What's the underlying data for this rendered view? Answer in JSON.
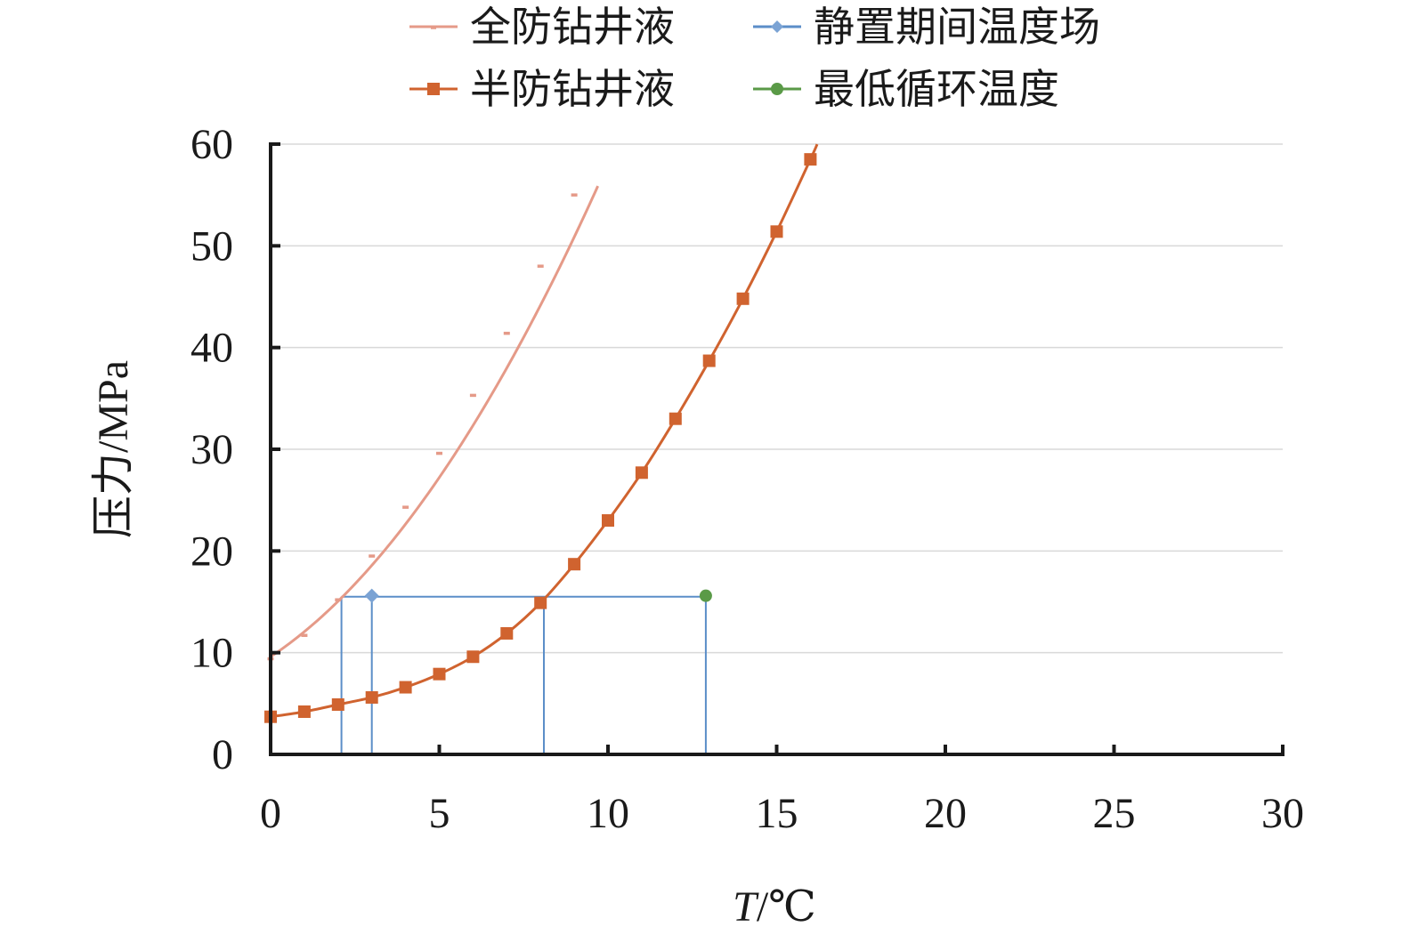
{
  "chart_data": {
    "type": "line",
    "xlabel_italic": "T",
    "xlabel_unit": "/℃",
    "ylabel": "压力/MPa",
    "xlim": [
      0,
      30
    ],
    "ylim": [
      0,
      60
    ],
    "x_ticks": [
      "0",
      "5",
      "10",
      "15",
      "20",
      "25",
      "30"
    ],
    "y_ticks": [
      "0",
      "10",
      "20",
      "30",
      "40",
      "50",
      "60"
    ],
    "grid": "horizontal",
    "legend_position": "top",
    "series": [
      {
        "name": "全防钻井液",
        "color": "#e59a88",
        "marker": "dash",
        "x": [
          0,
          1,
          2,
          3,
          4,
          5,
          6,
          7,
          8,
          9
        ],
        "y": [
          9.4,
          11.7,
          15.2,
          19.5,
          24.3,
          29.6,
          35.3,
          41.4,
          48.0,
          55.0
        ],
        "curve": {
          "x_end": 9.7,
          "coef": [
            9.6,
            2.2,
            0.265
          ]
        }
      },
      {
        "name": "半防钻井液",
        "color": "#d0632f",
        "marker": "square",
        "x": [
          0,
          1,
          2,
          3,
          4,
          5,
          6,
          7,
          8,
          9,
          10,
          11,
          12,
          13,
          14,
          15,
          16
        ],
        "y": [
          3.7,
          4.2,
          4.9,
          5.6,
          6.6,
          7.9,
          9.6,
          11.9,
          14.9,
          18.7,
          23.0,
          27.7,
          33.0,
          38.7,
          44.8,
          51.4,
          58.5
        ],
        "curve": {
          "x_end": 16.2
        }
      },
      {
        "name": "静置期间温度场",
        "color": "#7ba3d4",
        "line_color": "#5b8ec8",
        "marker": "diamond",
        "x": [
          3.0
        ],
        "y": [
          15.6
        ]
      },
      {
        "name": "最低循环温度",
        "color": "#5a9a47",
        "marker": "circle",
        "x": [
          12.9
        ],
        "y": [
          15.6
        ]
      }
    ],
    "guides": {
      "level_y": 15.5,
      "x_from": 2.1,
      "x_to": 12.9,
      "drops_x": [
        2.1,
        3.0,
        8.1,
        12.9
      ]
    }
  }
}
